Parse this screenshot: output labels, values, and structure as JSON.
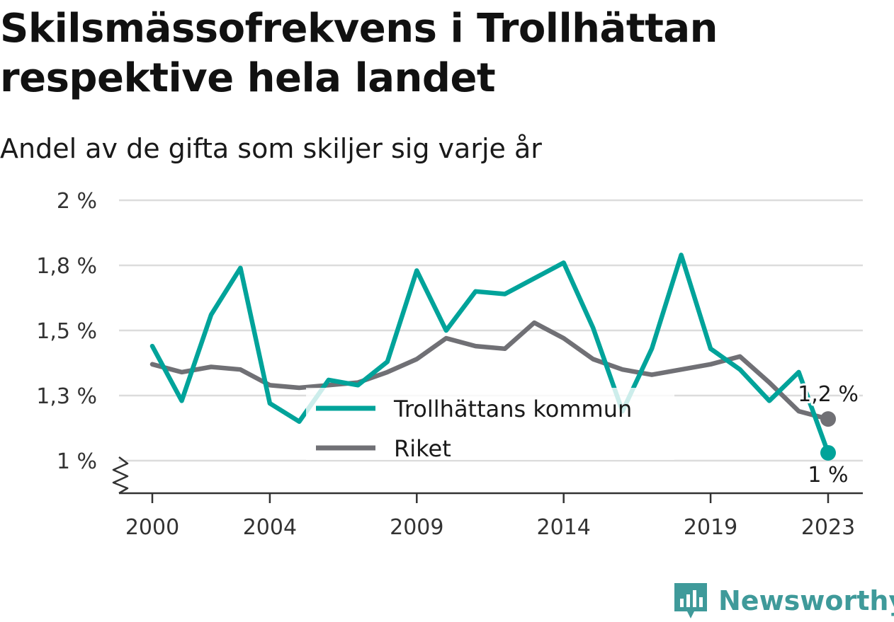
{
  "title": "Skilsmässofrekvens i Trollhättan respektive hela landet",
  "subtitle": "Andel av de gifta som skiljer sig varje år",
  "brand": {
    "name": "Newsworthy",
    "color": "#3f9a9a",
    "icon": "newsworthy-logo-icon"
  },
  "chart_data": {
    "type": "line",
    "title": "Skilsmässofrekvens i Trollhättan respektive hela landet",
    "subtitle": "Andel av de gifta som skiljer sig varje år",
    "x": [
      2000,
      2001,
      2002,
      2003,
      2004,
      2005,
      2006,
      2007,
      2008,
      2009,
      2010,
      2011,
      2012,
      2013,
      2014,
      2015,
      2016,
      2017,
      2018,
      2019,
      2020,
      2021,
      2022,
      2023
    ],
    "x_ticks": [
      2000,
      2004,
      2009,
      2014,
      2019,
      2023
    ],
    "y_ticks": [
      {
        "value": 1.0,
        "label": "1 %"
      },
      {
        "value": 1.25,
        "label": "1,3 %"
      },
      {
        "value": 1.5,
        "label": "1,5 %"
      },
      {
        "value": 1.75,
        "label": "1,8 %"
      },
      {
        "value": 2.0,
        "label": "2 %"
      }
    ],
    "ylim": [
      0.875,
      2.0
    ],
    "y_axis_break": true,
    "grid": true,
    "legend": "center-bottom",
    "series": [
      {
        "name": "Trollhättans kommun",
        "color": "#00a39a",
        "values": [
          1.44,
          1.23,
          1.56,
          1.74,
          1.22,
          1.15,
          1.31,
          1.29,
          1.38,
          1.73,
          1.5,
          1.65,
          1.64,
          1.7,
          1.76,
          1.51,
          1.19,
          1.43,
          1.79,
          1.43,
          1.35,
          1.23,
          1.34,
          1.03
        ],
        "end_label": "1 %"
      },
      {
        "name": "Riket",
        "color": "#707075",
        "values": [
          1.37,
          1.34,
          1.36,
          1.35,
          1.29,
          1.28,
          1.29,
          1.3,
          1.34,
          1.39,
          1.47,
          1.44,
          1.43,
          1.53,
          1.47,
          1.39,
          1.35,
          1.33,
          1.35,
          1.37,
          1.4,
          1.3,
          1.19,
          1.16
        ],
        "end_label": "1,2 %"
      }
    ]
  }
}
